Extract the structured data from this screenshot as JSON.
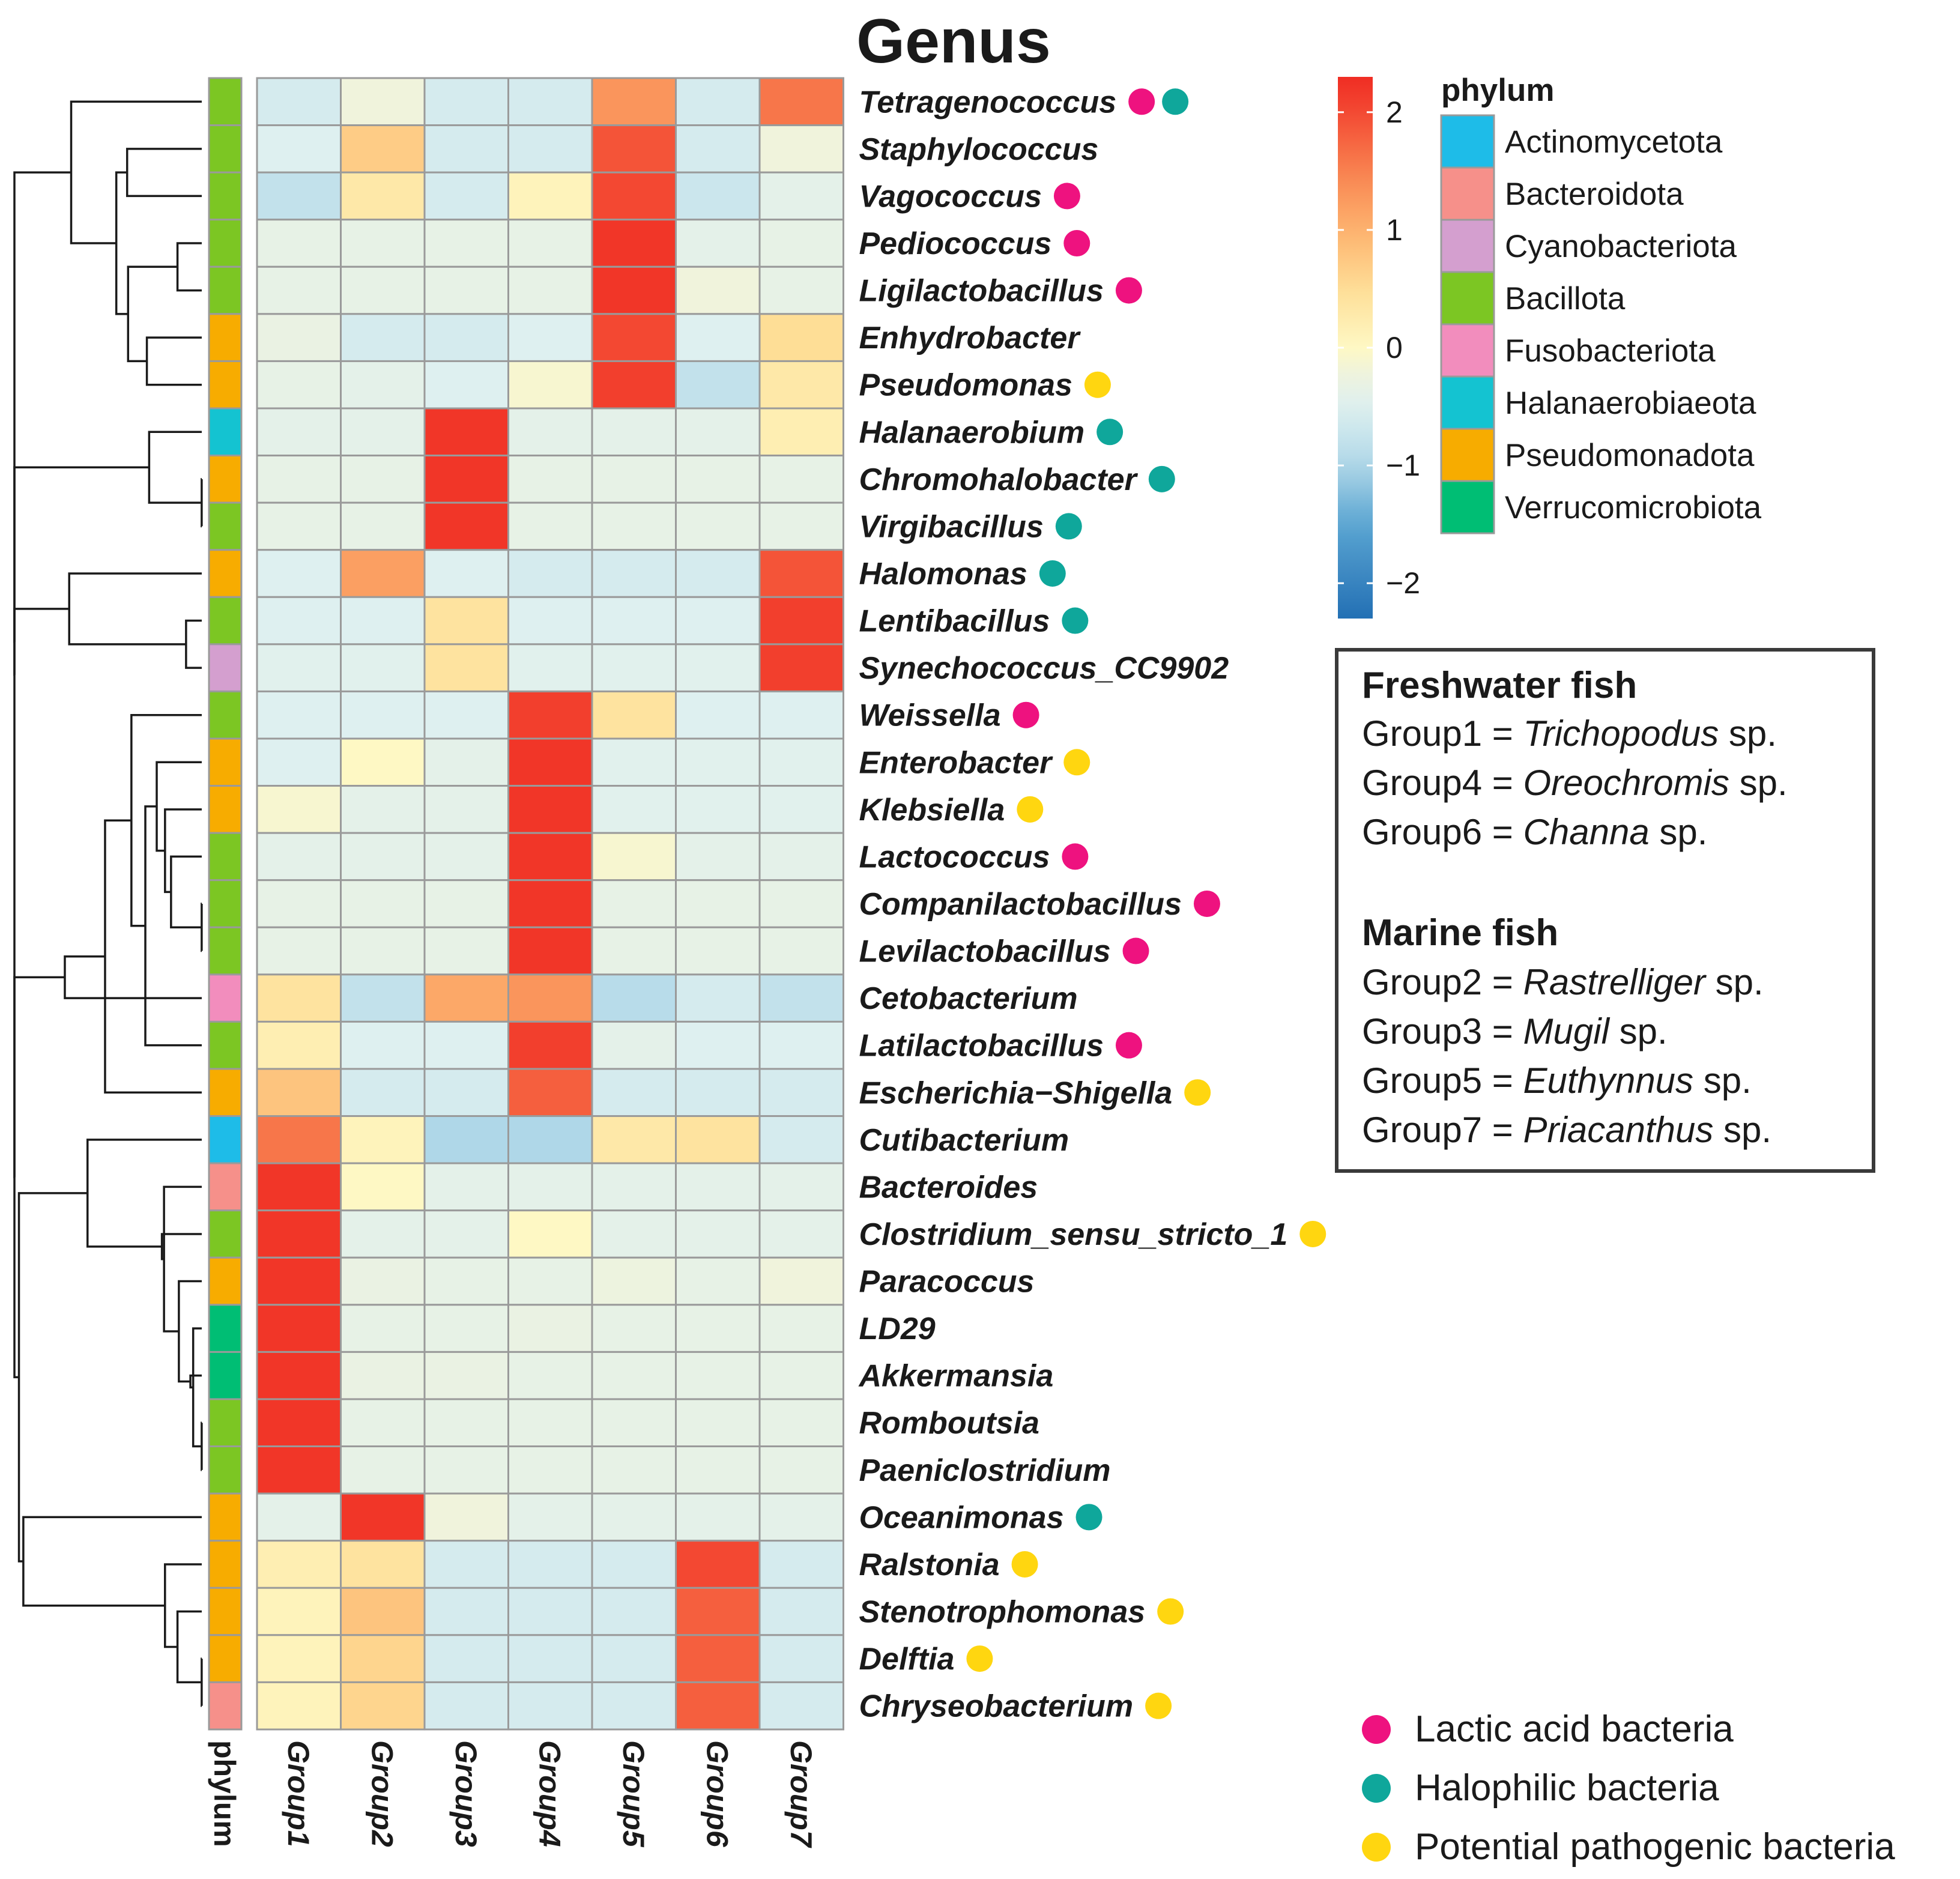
{
  "chart_data": {
    "type": "heatmap",
    "title": "Genus",
    "columns": [
      "Group1",
      "Group2",
      "Group3",
      "Group4",
      "Group5",
      "Group6",
      "Group7"
    ],
    "annotation_column_label": "phylum",
    "color_scale": {
      "min": -2,
      "max": 2,
      "ticks": [
        "2",
        "1",
        "0",
        "−1",
        "−2"
      ]
    },
    "rows": [
      {
        "genus": "Tetragenococcus",
        "phylum": "Bacillota",
        "marks": [
          "lab",
          "halo"
        ],
        "values": [
          -0.6,
          -0.2,
          -0.6,
          -0.6,
          1.3,
          -0.6,
          1.6
        ]
      },
      {
        "genus": "Staphylococcus",
        "phylum": "Bacillota",
        "marks": [],
        "values": [
          -0.5,
          0.7,
          -0.6,
          -0.6,
          1.9,
          -0.6,
          -0.2
        ]
      },
      {
        "genus": "Vagococcus",
        "phylum": "Bacillota",
        "marks": [
          "lab"
        ],
        "values": [
          -0.8,
          0.3,
          -0.6,
          0.1,
          2.0,
          -0.7,
          -0.4
        ]
      },
      {
        "genus": "Pediococcus",
        "phylum": "Bacillota",
        "marks": [
          "lab"
        ],
        "values": [
          -0.35,
          -0.35,
          -0.35,
          -0.35,
          2.2,
          -0.4,
          -0.35
        ]
      },
      {
        "genus": "Ligilactobacillus",
        "phylum": "Bacillota",
        "marks": [
          "lab"
        ],
        "values": [
          -0.35,
          -0.35,
          -0.35,
          -0.35,
          2.2,
          -0.2,
          -0.35
        ]
      },
      {
        "genus": "Enhydrobacter",
        "phylum": "Pseudomonadota",
        "marks": [],
        "values": [
          -0.3,
          -0.6,
          -0.6,
          -0.5,
          2.0,
          -0.5,
          0.5
        ]
      },
      {
        "genus": "Pseudomonas",
        "phylum": "Pseudomonadota",
        "marks": [
          "path"
        ],
        "values": [
          -0.35,
          -0.4,
          -0.5,
          -0.1,
          2.1,
          -0.8,
          0.3
        ]
      },
      {
        "genus": "Halanaerobium",
        "phylum": "Halanaerobiaeota",
        "marks": [
          "halo"
        ],
        "values": [
          -0.4,
          -0.4,
          2.2,
          -0.4,
          -0.4,
          -0.4,
          0.2
        ]
      },
      {
        "genus": "Chromohalobacter",
        "phylum": "Pseudomonadota",
        "marks": [
          "halo"
        ],
        "values": [
          -0.35,
          -0.35,
          2.2,
          -0.35,
          -0.35,
          -0.35,
          -0.35
        ]
      },
      {
        "genus": "Virgibacillus",
        "phylum": "Bacillota",
        "marks": [
          "halo"
        ],
        "values": [
          -0.35,
          -0.35,
          2.2,
          -0.35,
          -0.35,
          -0.35,
          -0.35
        ]
      },
      {
        "genus": "Halomonas",
        "phylum": "Pseudomonadota",
        "marks": [
          "halo"
        ],
        "values": [
          -0.5,
          1.2,
          -0.5,
          -0.6,
          -0.6,
          -0.6,
          1.9
        ]
      },
      {
        "genus": "Lentibacillus",
        "phylum": "Bacillota",
        "marks": [
          "halo"
        ],
        "values": [
          -0.5,
          -0.5,
          0.4,
          -0.5,
          -0.5,
          -0.5,
          2.1
        ]
      },
      {
        "genus": "Synechococcus_CC9902",
        "phylum": "Cyanobacteriota",
        "marks": [],
        "values": [
          -0.45,
          -0.45,
          0.4,
          -0.45,
          -0.45,
          -0.45,
          2.1
        ]
      },
      {
        "genus": "Weissella",
        "phylum": "Bacillota",
        "marks": [
          "lab"
        ],
        "values": [
          -0.5,
          -0.5,
          -0.5,
          2.1,
          0.4,
          -0.5,
          -0.5
        ]
      },
      {
        "genus": "Enterobacter",
        "phylum": "Pseudomonadota",
        "marks": [
          "path"
        ],
        "values": [
          -0.5,
          0.0,
          -0.4,
          2.2,
          -0.45,
          -0.45,
          -0.45
        ]
      },
      {
        "genus": "Klebsiella",
        "phylum": "Pseudomonadota",
        "marks": [
          "path"
        ],
        "values": [
          -0.1,
          -0.4,
          -0.4,
          2.2,
          -0.45,
          -0.45,
          -0.45
        ]
      },
      {
        "genus": "Lactococcus",
        "phylum": "Bacillota",
        "marks": [
          "lab"
        ],
        "values": [
          -0.4,
          -0.4,
          -0.4,
          2.2,
          -0.1,
          -0.4,
          -0.4
        ]
      },
      {
        "genus": "Companilactobacillus",
        "phylum": "Bacillota",
        "marks": [
          "lab"
        ],
        "values": [
          -0.35,
          -0.35,
          -0.35,
          2.2,
          -0.35,
          -0.35,
          -0.35
        ]
      },
      {
        "genus": "Levilactobacillus",
        "phylum": "Bacillota",
        "marks": [
          "lab"
        ],
        "values": [
          -0.35,
          -0.35,
          -0.35,
          2.2,
          -0.35,
          -0.35,
          -0.35
        ]
      },
      {
        "genus": "Cetobacterium",
        "phylum": "Fusobacteriota",
        "marks": [],
        "values": [
          0.4,
          -0.8,
          1.1,
          1.3,
          -0.9,
          -0.6,
          -0.8
        ]
      },
      {
        "genus": "Latilactobacillus",
        "phylum": "Bacillota",
        "marks": [
          "lab"
        ],
        "values": [
          0.2,
          -0.5,
          -0.5,
          2.1,
          -0.4,
          -0.5,
          -0.5
        ]
      },
      {
        "genus": "Escherichia−Shigella",
        "phylum": "Pseudomonadota",
        "marks": [
          "path"
        ],
        "values": [
          0.8,
          -0.6,
          -0.6,
          1.8,
          -0.6,
          -0.6,
          -0.6
        ]
      },
      {
        "genus": "Cutibacterium",
        "phylum": "Actinomycetota",
        "marks": [],
        "values": [
          1.6,
          0.1,
          -1.0,
          -1.0,
          0.3,
          0.4,
          -0.6
        ]
      },
      {
        "genus": "Bacteroides",
        "phylum": "Bacteroidota",
        "marks": [],
        "values": [
          2.2,
          0.0,
          -0.4,
          -0.4,
          -0.4,
          -0.4,
          -0.4
        ]
      },
      {
        "genus": "Clostridium_sensu_stricto_1",
        "phylum": "Bacillota",
        "marks": [
          "path"
        ],
        "values": [
          2.2,
          -0.4,
          -0.4,
          0.0,
          -0.4,
          -0.4,
          -0.4
        ]
      },
      {
        "genus": "Paracoccus",
        "phylum": "Pseudomonadota",
        "marks": [],
        "values": [
          2.2,
          -0.3,
          -0.35,
          -0.35,
          -0.25,
          -0.35,
          -0.2
        ]
      },
      {
        "genus": "LD29",
        "phylum": "Verrucomicrobiota",
        "marks": [],
        "values": [
          2.2,
          -0.35,
          -0.35,
          -0.3,
          -0.35,
          -0.35,
          -0.35
        ]
      },
      {
        "genus": "Akkermansia",
        "phylum": "Verrucomicrobiota",
        "marks": [],
        "values": [
          2.2,
          -0.3,
          -0.3,
          -0.35,
          -0.35,
          -0.35,
          -0.35
        ]
      },
      {
        "genus": "Romboutsia",
        "phylum": "Bacillota",
        "marks": [],
        "values": [
          2.2,
          -0.35,
          -0.35,
          -0.35,
          -0.35,
          -0.35,
          -0.35
        ]
      },
      {
        "genus": "Paeniclostridium",
        "phylum": "Bacillota",
        "marks": [],
        "values": [
          2.2,
          -0.35,
          -0.35,
          -0.35,
          -0.35,
          -0.35,
          -0.35
        ]
      },
      {
        "genus": "Oceanimonas",
        "phylum": "Pseudomonadota",
        "marks": [
          "halo"
        ],
        "values": [
          -0.4,
          2.2,
          -0.2,
          -0.4,
          -0.4,
          -0.4,
          -0.4
        ]
      },
      {
        "genus": "Ralstonia",
        "phylum": "Pseudomonadota",
        "marks": [
          "path"
        ],
        "values": [
          0.2,
          0.4,
          -0.6,
          -0.6,
          -0.6,
          2.0,
          -0.6
        ]
      },
      {
        "genus": "Stenotrophomonas",
        "phylum": "Pseudomonadota",
        "marks": [
          "path"
        ],
        "values": [
          0.1,
          0.8,
          -0.6,
          -0.6,
          -0.6,
          1.8,
          -0.6
        ]
      },
      {
        "genus": "Delftia",
        "phylum": "Pseudomonadota",
        "marks": [
          "path"
        ],
        "values": [
          0.1,
          0.6,
          -0.6,
          -0.6,
          -0.6,
          1.8,
          -0.6
        ]
      },
      {
        "genus": "Chryseobacterium",
        "phylum": "Bacteroidota",
        "marks": [
          "path"
        ],
        "values": [
          0.1,
          0.6,
          -0.6,
          -0.6,
          -0.6,
          1.8,
          -0.6
        ]
      }
    ]
  },
  "phylum_legend": {
    "title": "phylum",
    "items": [
      {
        "name": "Actinomycetota",
        "color": "#1EBCE8"
      },
      {
        "name": "Bacteroidota",
        "color": "#F6908A"
      },
      {
        "name": "Cyanobacteriota",
        "color": "#D49FCF"
      },
      {
        "name": "Bacillota",
        "color": "#7CC623"
      },
      {
        "name": "Fusobacteriota",
        "color": "#F28DBD"
      },
      {
        "name": "Halanaerobiaeota",
        "color": "#14C3D1"
      },
      {
        "name": "Pseudomonadota",
        "color": "#F7AC00"
      },
      {
        "name": "Verrucomicrobiota",
        "color": "#00BE74"
      }
    ]
  },
  "marker_legend": [
    {
      "key": "lab",
      "label": "Lactic acid bacteria",
      "color": "#EE127F"
    },
    {
      "key": "halo",
      "label": "Halophilic bacteria",
      "color": "#0FA79B"
    },
    {
      "key": "path",
      "label": "Potential pathogenic bacteria",
      "color": "#FFD610"
    }
  ],
  "group_box": {
    "freshwater_title": "Freshwater fish",
    "freshwater": [
      {
        "group": "Group1 = ",
        "genus": "Trichopodus",
        "suffix": " sp."
      },
      {
        "group": "Group4 = ",
        "genus": "Oreochromis",
        "suffix": " sp."
      },
      {
        "group": "Group6 = ",
        "genus": "Channa",
        "suffix": " sp."
      }
    ],
    "marine_title": "Marine fish",
    "marine": [
      {
        "group": "Group2 = ",
        "genus": "Rastrelliger",
        "suffix": " sp."
      },
      {
        "group": "Group3 = ",
        "genus": "Mugil",
        "suffix": " sp."
      },
      {
        "group": "Group5 = ",
        "genus": "Euthynnus",
        "suffix": " sp."
      },
      {
        "group": "Group7 = ",
        "genus": "Priacanthus",
        "suffix": " sp."
      }
    ]
  }
}
